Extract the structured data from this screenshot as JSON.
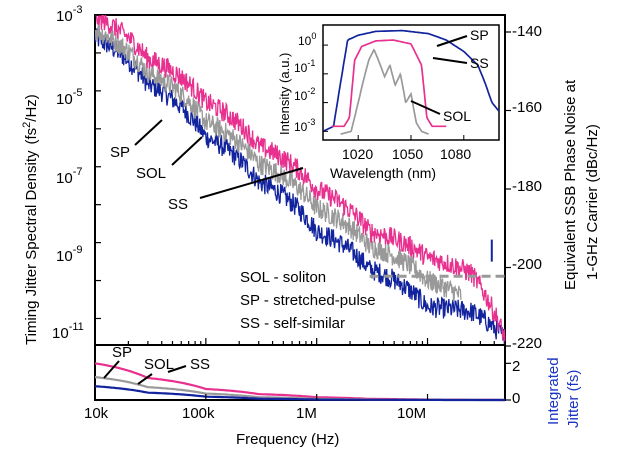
{
  "chart_data": [
    {
      "panel": "main",
      "type": "line",
      "xscale": "log",
      "yscale": "log",
      "xlim": [
        10000,
        50000000
      ],
      "ylim": [
        2e-12,
        0.001
      ],
      "xlabel": "Frequency (Hz)",
      "ylabel": "Timing Jitter Spectral Density",
      "ylabel_unit_base": "(fs",
      "ylabel_unit_exp": "2",
      "ylabel_unit_tail": "/Hz)",
      "y_ticks": [
        {
          "base": "10",
          "exp": "-3"
        },
        {
          "base": "10",
          "exp": "-5"
        },
        {
          "base": "10",
          "exp": "-7"
        },
        {
          "base": "10",
          "exp": "-9"
        },
        {
          "base": "10",
          "exp": "-11"
        }
      ],
      "y2label_line1": "Equivalent SSB Phase Noise at",
      "y2label_line2": "1-GHz Carrier (dBc/Hz)",
      "y2_ticks": [
        "-140",
        "-160",
        "-180",
        "-200",
        "-220"
      ],
      "series": [
        {
          "name": "SP",
          "color": "#12239e",
          "x": [
            10000,
            30000,
            100000,
            300000,
            1000000,
            3000000,
            10000000,
            25000000,
            50000000
          ],
          "y": [
            0.00025,
            1.5e-05,
            6e-07,
            4e-08,
            2e-09,
            2e-10,
            2e-11,
            1.5e-11,
            3e-12
          ]
        },
        {
          "name": "SOL",
          "color": "#999999",
          "x": [
            10000,
            30000,
            100000,
            300000,
            1000000,
            3000000,
            10000000,
            20000000
          ],
          "y": [
            0.0004,
            3e-05,
            1.5e-06,
            1.2e-07,
            8e-09,
            8e-10,
            1e-10,
            4e-11
          ]
        },
        {
          "name": "SS",
          "color": "#e8308f",
          "x": [
            10000,
            30000,
            100000,
            300000,
            1000000,
            3000000,
            10000000,
            25000000,
            50000000
          ],
          "y": [
            0.0009,
            7e-05,
            5e-06,
            3.5e-07,
            2.5e-08,
            2e-09,
            4e-10,
            1.5e-10,
            3e-12
          ]
        }
      ],
      "reference_line": {
        "style": "dashed",
        "color": "#999999",
        "y": 1.3e-10,
        "x_start": 3000000,
        "x_end": 50000000
      },
      "spike": {
        "x": 38000000,
        "y_top": 1.2e-09,
        "color": "#12239e"
      },
      "annotations": [
        {
          "text": "SP",
          "series": "SP"
        },
        {
          "text": "SOL",
          "series": "SOL"
        },
        {
          "text": "SS",
          "series": "SS"
        }
      ],
      "key_text": [
        "SOL - soliton",
        "SP - stretched-pulse",
        "SS - self-similar"
      ]
    },
    {
      "panel": "integrated",
      "type": "line",
      "xscale": "log",
      "xlim": [
        10000,
        50000000
      ],
      "ylim": [
        0,
        3
      ],
      "ylabel_line1": "Integrated",
      "ylabel_line2": "Jitter (fs)",
      "ylabel_color": "#1a33c4",
      "x_ticks": [
        "10k",
        "100k",
        "1M",
        "10M"
      ],
      "y_ticks": [
        "0",
        "2"
      ],
      "series": [
        {
          "name": "SS",
          "color": "#e8308f",
          "x": [
            10000,
            30000,
            100000,
            300000,
            1000000,
            3000000,
            10000000,
            50000000
          ],
          "y": [
            2.0,
            1.2,
            0.6,
            0.32,
            0.15,
            0.06,
            0.02,
            0.0
          ]
        },
        {
          "name": "SOL",
          "color": "#999999",
          "x": [
            10000,
            30000,
            100000,
            300000,
            1000000,
            3000000,
            10000000,
            50000000
          ],
          "y": [
            1.25,
            0.7,
            0.35,
            0.15,
            0.06,
            0.02,
            0.005,
            0.0
          ]
        },
        {
          "name": "SP",
          "color": "#12239e",
          "x": [
            10000,
            30000,
            100000,
            300000,
            1000000,
            3000000,
            10000000,
            50000000
          ],
          "y": [
            0.75,
            0.4,
            0.18,
            0.07,
            0.025,
            0.01,
            0.003,
            0.0
          ]
        }
      ],
      "annotations": [
        {
          "text": "SP",
          "series": "SP"
        },
        {
          "text": "SOL",
          "series": "SOL"
        },
        {
          "text": "SS",
          "series": "SS"
        }
      ]
    },
    {
      "panel": "inset",
      "type": "line",
      "yscale": "log",
      "xlim": [
        1000,
        1100
      ],
      "ylim": [
        0.0005,
        5
      ],
      "xlabel": "Wavelength (nm)",
      "ylabel": "Intensity (a.u.)",
      "x_ticks": [
        "1020",
        "1050",
        "1080"
      ],
      "y_ticks": [
        {
          "base": "10",
          "exp": "0"
        },
        {
          "base": "10",
          "exp": "-1"
        },
        {
          "base": "10",
          "exp": "-2"
        },
        {
          "base": "10",
          "exp": "-3"
        }
      ],
      "series": [
        {
          "name": "SP",
          "color": "#12239e",
          "x": [
            1000,
            1006,
            1010,
            1014,
            1020,
            1030,
            1045,
            1060,
            1070,
            1080,
            1088,
            1092,
            1096,
            1100
          ],
          "y": [
            0.001,
            0.0015,
            0.05,
            1.5,
            2.2,
            3.0,
            3.2,
            2.5,
            1.5,
            0.6,
            0.2,
            0.05,
            0.01,
            0.005
          ]
        },
        {
          "name": "SS",
          "color": "#e8308f",
          "x": [
            1005,
            1012,
            1015,
            1018,
            1022,
            1030,
            1040,
            1050,
            1056,
            1059,
            1062,
            1070
          ],
          "y": [
            0.0015,
            0.0015,
            0.003,
            0.3,
            0.9,
            1.4,
            1.5,
            1.1,
            0.2,
            0.003,
            0.0015,
            0.0015
          ]
        },
        {
          "name": "SOL",
          "color": "#999999",
          "x": [
            1010,
            1016,
            1020,
            1023,
            1026,
            1029,
            1032,
            1035,
            1038,
            1041,
            1044,
            1047,
            1050,
            1053,
            1056,
            1060
          ],
          "y": [
            0.0008,
            0.001,
            0.01,
            0.06,
            0.3,
            0.7,
            0.25,
            0.08,
            0.2,
            0.04,
            0.1,
            0.01,
            0.02,
            0.002,
            0.001,
            0.0008
          ]
        }
      ],
      "annotations": [
        {
          "text": "SP",
          "series": "SP"
        },
        {
          "text": "SS",
          "series": "SS"
        },
        {
          "text": "SOL",
          "series": "SOL"
        }
      ]
    }
  ]
}
